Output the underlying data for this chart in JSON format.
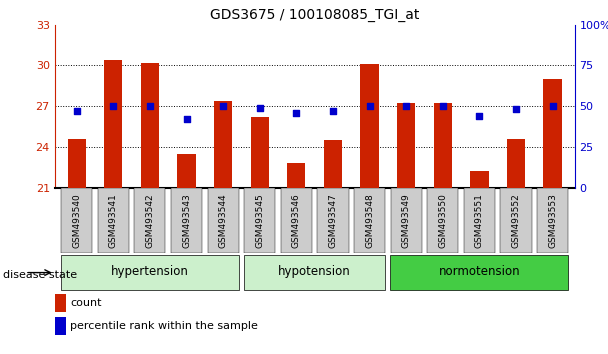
{
  "title": "GDS3675 / 100108085_TGI_at",
  "samples": [
    "GSM493540",
    "GSM493541",
    "GSM493542",
    "GSM493543",
    "GSM493544",
    "GSM493545",
    "GSM493546",
    "GSM493547",
    "GSM493548",
    "GSM493549",
    "GSM493550",
    "GSM493551",
    "GSM493552",
    "GSM493553"
  ],
  "counts": [
    24.6,
    30.4,
    30.2,
    23.5,
    27.4,
    26.2,
    22.8,
    24.5,
    30.1,
    27.2,
    27.2,
    22.2,
    24.6,
    29.0
  ],
  "percentiles": [
    47,
    50,
    50,
    42,
    50,
    49,
    46,
    47,
    50,
    50,
    50,
    44,
    48,
    50
  ],
  "ylim_left": [
    21,
    33
  ],
  "ylim_right": [
    0,
    100
  ],
  "yticks_left": [
    21,
    24,
    27,
    30,
    33
  ],
  "yticks_right": [
    0,
    25,
    50,
    75,
    100
  ],
  "bar_color": "#cc2200",
  "dot_color": "#0000cc",
  "bar_width": 0.5,
  "background_color": "#ffffff",
  "tick_label_color_left": "#cc2200",
  "tick_label_color_right": "#0000cc",
  "disease_state_label": "disease state",
  "legend_count": "count",
  "legend_percentile": "percentile rank within the sample",
  "group_hypertension_color": "#ccf0cc",
  "group_hypotension_color": "#ccf0cc",
  "group_normotension_color": "#44cc44",
  "xtick_bg": "#cccccc",
  "groups": [
    {
      "label": "hypertension",
      "indices": [
        0,
        1,
        2,
        3,
        4
      ],
      "color": "#ccf0cc"
    },
    {
      "label": "hypotension",
      "indices": [
        5,
        6,
        7,
        8
      ],
      "color": "#ccf0cc"
    },
    {
      "label": "normotension",
      "indices": [
        9,
        10,
        11,
        12,
        13
      ],
      "color": "#44cc44"
    }
  ]
}
